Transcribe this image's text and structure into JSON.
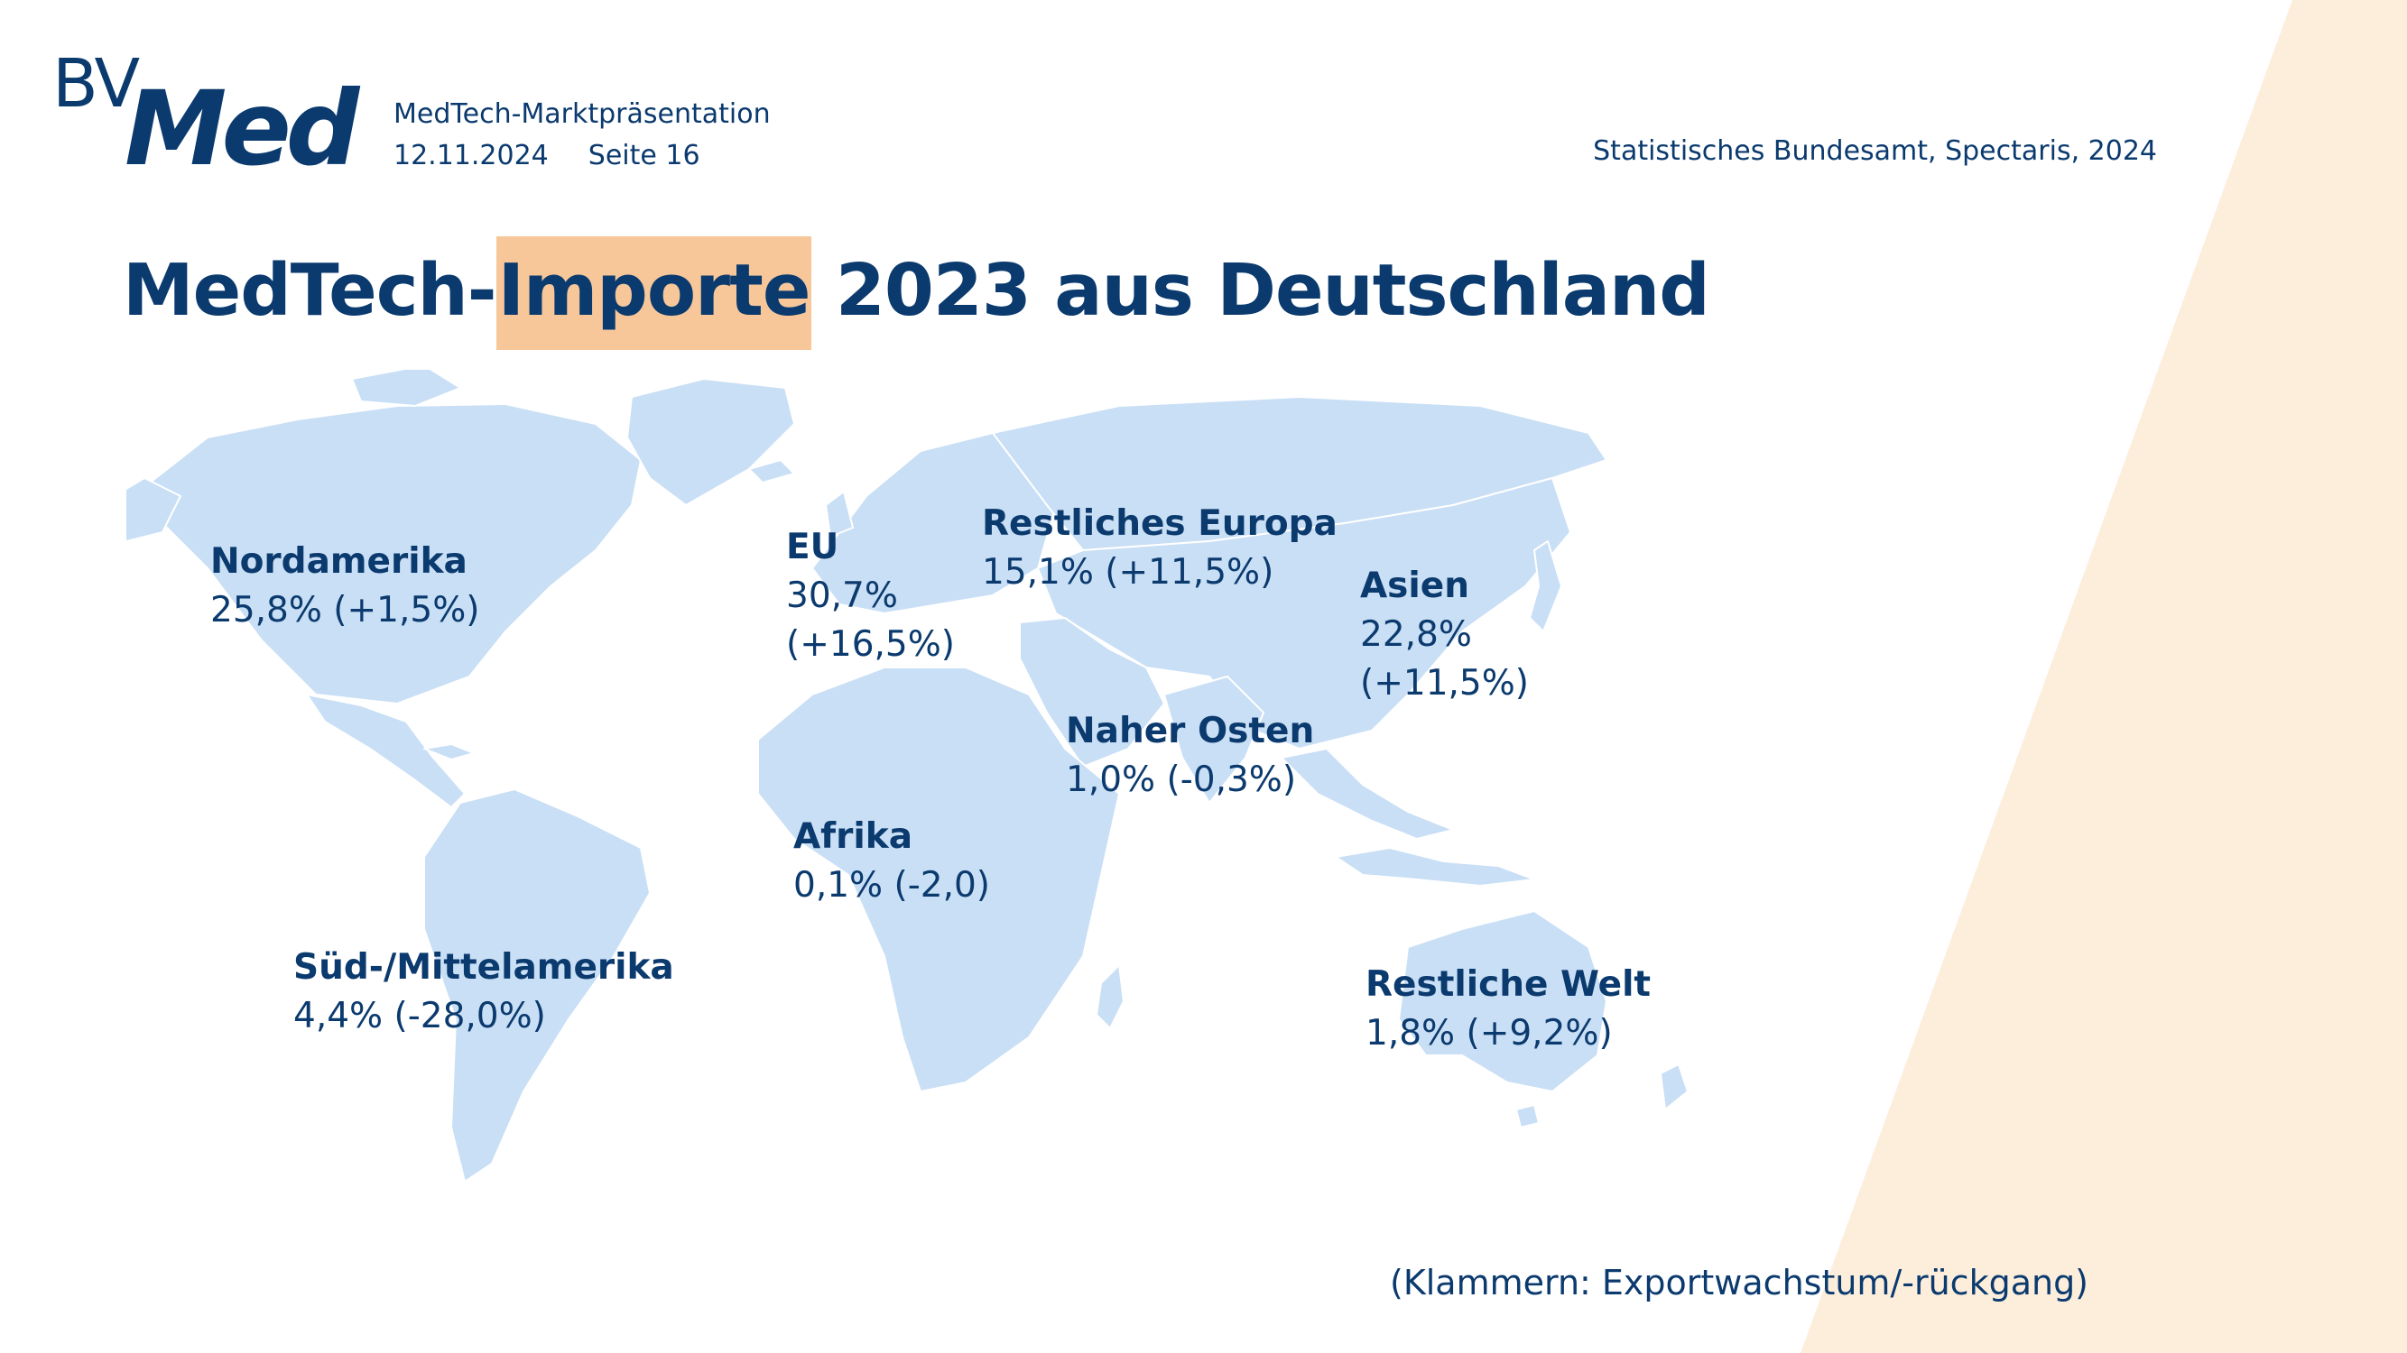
{
  "colors": {
    "brand": "#0b3a6e",
    "highlight": "#f7c79a",
    "land": "#c9dff5",
    "stripe": "#fdeedc"
  },
  "logo": {
    "bv": "BV",
    "med": "Med"
  },
  "header": {
    "subtitle": "MedTech-Marktpräsentation",
    "date": "12.11.2024",
    "page": "Seite 16",
    "source": "Statistisches Bundesamt, Spectaris, 2024"
  },
  "title": {
    "part1": "MedTech-",
    "highlight": "Importe",
    "part2": " 2023 aus Deutschland"
  },
  "regions": {
    "nordamerika": {
      "name": "Nordamerika",
      "share": "25,8% (+1,5%)"
    },
    "sued_mittelamerika": {
      "name": "Süd-/Mittelamerika",
      "share": "4,4% (-28,0%)"
    },
    "eu": {
      "name": "EU",
      "share": "30,7%",
      "growth": "(+16,5%)"
    },
    "restliches_europa": {
      "name": "Restliches Europa",
      "share": "15,1% (+11,5%)"
    },
    "asien": {
      "name": "Asien",
      "share": "22,8%",
      "growth": "(+11,5%)"
    },
    "naher_osten": {
      "name": "Naher Osten",
      "share": "1,0% (-0,3%)"
    },
    "afrika": {
      "name": "Afrika",
      "share": "0,1% (-2,0)"
    },
    "restliche_welt": {
      "name": "Restliche Welt",
      "share": "1,8% (+9,2%)"
    }
  },
  "footnote": "(Klammern: Exportwachstum/-rückgang)"
}
